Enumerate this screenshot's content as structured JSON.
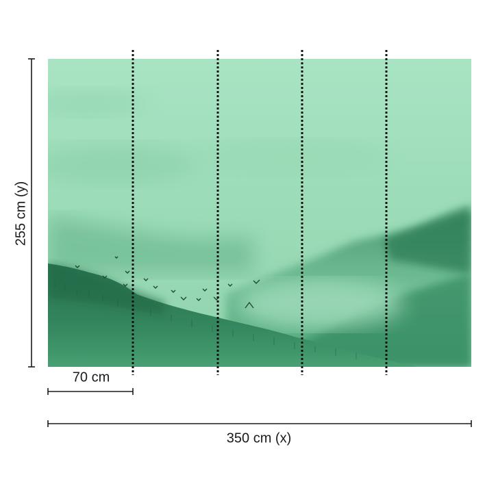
{
  "diagram": {
    "height_label": "255 cm (y)",
    "panel_width_label": "70 cm",
    "total_width_label": "350 cm (x)",
    "panel_seam_count": 4,
    "colors": {
      "sky_light": "#a6e2c1",
      "sky_mid": "#93d6b1",
      "mountain_dark": "#1f6e4a",
      "mountain_mid": "#3f9a6c",
      "seam_line": "#111111",
      "dimension_line": "#1a1a1a"
    }
  }
}
